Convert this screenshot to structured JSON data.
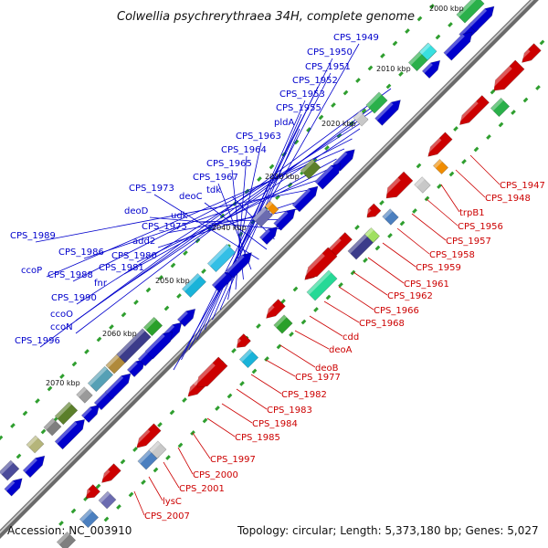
{
  "title": "Colwellia psychrerythraea 34H, complete genome",
  "accession": "Accession: NC_003910",
  "topology": "Topology: circular; Length: 5,373,180 bp; Genes: 5,027",
  "kbp_ticks": [
    "2000 kbp",
    "2010 kbp",
    "2020 kbp",
    "2030 kbp",
    "2040 kbp",
    "2050 kbp",
    "2060 kbp",
    "2070 kbp"
  ],
  "blue_labels": [
    "CPS_1949",
    "CPS_1950",
    "CPS_1951",
    "CPS_1952",
    "CPS_1953",
    "CPS_1955",
    "pldA",
    "CPS_1963",
    "CPS_1964",
    "CPS_1965",
    "CPS_1967",
    "CPS_1973",
    "deoC",
    "tdk",
    "deoD",
    "udk",
    "CPS_1975",
    "add2",
    "CPS_1989",
    "CPS_1986",
    "CPS_1980",
    "CPS_1981",
    "ccoP",
    "CPS_1988",
    "fnr",
    "CPS_1990",
    "ccoO",
    "ccoN",
    "CPS_1996"
  ],
  "red_labels": [
    "CPS_1947",
    "CPS_1948",
    "trpB1",
    "CPS_1956",
    "CPS_1957",
    "CPS_1958",
    "CPS_1959",
    "CPS_1961",
    "CPS_1962",
    "CPS_1966",
    "CPS_1968",
    "cdd",
    "deoA",
    "deoB",
    "CPS_1977",
    "CPS_1982",
    "CPS_1983",
    "CPS_1984",
    "CPS_1985",
    "CPS_1997",
    "CPS_2000",
    "CPS_2001",
    "lysC",
    "CPS_2007"
  ],
  "colors": {
    "forward": "#0000cc",
    "reverse": "#cc0000",
    "backbone": "#999999",
    "gc": "#2e9e2e"
  }
}
